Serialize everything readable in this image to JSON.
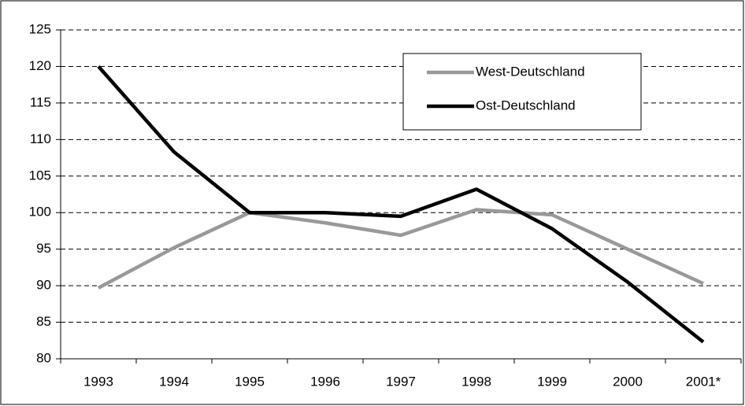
{
  "chart_data": {
    "type": "line",
    "categories": [
      "1993",
      "1994",
      "1995",
      "1996",
      "1997",
      "1998",
      "1999",
      "2000",
      "2001*"
    ],
    "series": [
      {
        "name": "West-Deutschland",
        "color": "#999999",
        "values": [
          89.7,
          95.2,
          100,
          98.6,
          96.9,
          100.4,
          99.7,
          95,
          90.3
        ]
      },
      {
        "name": "Ost-Deutschland",
        "color": "#000000",
        "values": [
          120,
          108.3,
          100,
          100,
          99.5,
          103.2,
          97.8,
          90.5,
          82.3
        ]
      }
    ],
    "ylim": [
      80,
      125
    ],
    "yticks": [
      80,
      85,
      90,
      95,
      100,
      105,
      110,
      115,
      120,
      125
    ],
    "grid": true,
    "legend": "top-right"
  }
}
